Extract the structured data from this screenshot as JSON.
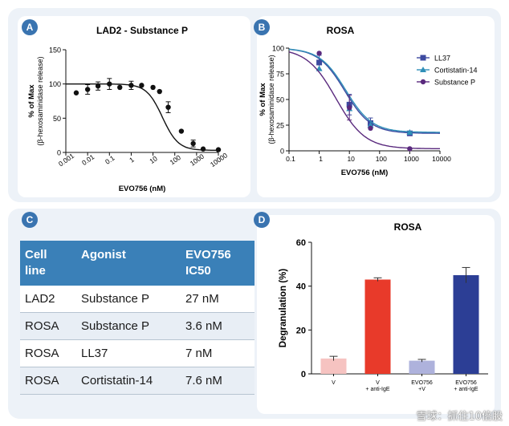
{
  "panels": {
    "A": {
      "label": "A"
    },
    "B": {
      "label": "B"
    },
    "C": {
      "label": "C"
    },
    "D": {
      "label": "D"
    }
  },
  "table": {
    "headers": [
      "Cell\nline",
      "Agonist",
      "EVO756\nIC50"
    ],
    "rows": [
      [
        "LAD2",
        "Substance P",
        "27 nM"
      ],
      [
        "ROSA",
        "Substance P",
        "3.6 nM"
      ],
      [
        "ROSA",
        "LL37",
        "7 nM"
      ],
      [
        "ROSA",
        "Cortistatin-14",
        "7.6 nM"
      ]
    ]
  },
  "watermark": "雪球：抓住10倍股",
  "chart_data": [
    {
      "id": "A",
      "type": "scatter",
      "title": "LAD2 - Substance P",
      "xlabel": "EVO756 (nM)",
      "ylabel": "% of Max",
      "ylabel2": "(β-hexosaminidase release)",
      "xscale": "log",
      "xlim": [
        0.001,
        10000
      ],
      "ylim": [
        0,
        150
      ],
      "xticks": [
        "0.001",
        "0.01",
        "0.1",
        "1",
        "10",
        "100",
        "1000",
        "10000"
      ],
      "yticks": [
        "0",
        "50",
        "100",
        "150"
      ],
      "series": [
        {
          "name": "Substance P",
          "x": [
            0.003,
            0.01,
            0.03,
            0.1,
            0.3,
            1,
            3,
            10,
            20,
            50,
            200,
            700,
            2000,
            10000
          ],
          "y": [
            87,
            92,
            97,
            100,
            95,
            98,
            98,
            95,
            89,
            66,
            31,
            13,
            5,
            4
          ],
          "err": [
            0,
            7,
            6,
            8,
            0,
            6,
            0,
            0,
            0,
            8,
            0,
            5,
            0,
            0
          ],
          "fit": {
            "top": 100,
            "bottom": 3,
            "ic50": 27,
            "hill": 1.2
          },
          "color": "#111111"
        }
      ]
    },
    {
      "id": "B",
      "type": "scatter",
      "title": "ROSA",
      "xlabel": "EVO756 (nM)",
      "ylabel": "% of Max",
      "ylabel2": "(β-hexosaminidase release)",
      "xscale": "log",
      "xlim": [
        0.1,
        10000
      ],
      "ylim": [
        0,
        100
      ],
      "xticks": [
        "0.1",
        "1",
        "10",
        "100",
        "1000",
        "10000"
      ],
      "yticks": [
        "0",
        "25",
        "50",
        "75",
        "100"
      ],
      "legend": "top-right",
      "series": [
        {
          "name": "LL37",
          "color": "#3d4aa0",
          "marker": "square",
          "x": [
            1,
            10,
            50,
            1000
          ],
          "y": [
            86,
            45,
            27,
            17
          ],
          "err": [
            7,
            10,
            5,
            0
          ],
          "fit": {
            "top": 100,
            "bottom": 17,
            "ic50": 7,
            "hill": 1
          }
        },
        {
          "name": "Cortistatin-14",
          "color": "#2f8fb8",
          "marker": "triangle",
          "x": [
            1,
            10,
            50,
            1000
          ],
          "y": [
            80,
            41,
            25,
            18
          ],
          "err": [
            0,
            0,
            0,
            0
          ],
          "fit": {
            "top": 100,
            "bottom": 18,
            "ic50": 7.6,
            "hill": 1
          }
        },
        {
          "name": "Substance P",
          "color": "#5a2a7e",
          "marker": "circle",
          "x": [
            1,
            10,
            50,
            1000
          ],
          "y": [
            95,
            42,
            22,
            2
          ],
          "err": [
            0,
            12,
            0,
            0
          ],
          "fit": {
            "top": 100,
            "bottom": 2,
            "ic50": 3.6,
            "hill": 0.9
          }
        }
      ]
    },
    {
      "id": "D",
      "type": "bar",
      "title": "ROSA",
      "ylabel": "Degranulation (%)",
      "ylim": [
        0,
        60
      ],
      "yticks": [
        "0",
        "20",
        "40",
        "60"
      ],
      "categories": [
        "V",
        "V\n+ anti-IgE",
        "EVO756\n+V",
        "EVO756\n+ anti-IgE"
      ],
      "values": [
        7,
        43,
        6,
        45
      ],
      "errors": [
        1,
        0.8,
        0.6,
        3.5
      ],
      "colors": [
        "#f6c3c1",
        "#e83a2a",
        "#aeb2dc",
        "#2c3e95"
      ]
    }
  ]
}
